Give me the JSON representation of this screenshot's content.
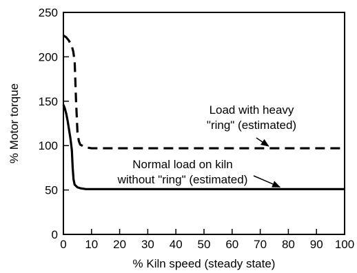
{
  "chart_data": {
    "type": "line",
    "xlabel": "% Kiln speed (steady state)",
    "ylabel": "% Motor torque",
    "xlim": [
      0,
      100
    ],
    "ylim": [
      0,
      250
    ],
    "x_ticks": [
      "0",
      "10",
      "20",
      "30",
      "40",
      "50",
      "60",
      "70",
      "80",
      "90",
      "100"
    ],
    "y_ticks": [
      "0",
      "50",
      "100",
      "150",
      "200",
      "250"
    ],
    "grid": false,
    "legend": "none",
    "series": [
      {
        "style": "dashed",
        "color": "#000000",
        "x": [
          0,
          1,
          2,
          3,
          3.5,
          4,
          4.5,
          5,
          5.5,
          6,
          8,
          10,
          12,
          20,
          40,
          60,
          80,
          100
        ],
        "y": [
          224,
          222,
          218,
          212,
          206,
          195,
          150,
          115,
          105,
          101,
          98,
          97,
          97,
          97,
          97,
          97,
          97,
          97
        ]
      },
      {
        "style": "solid",
        "color": "#000000",
        "x": [
          0,
          0.5,
          1,
          1.5,
          2,
          2.5,
          3,
          3.3,
          3.6,
          4,
          5,
          6,
          8,
          10,
          20,
          40,
          60,
          80,
          100
        ],
        "y": [
          146,
          142,
          136,
          128,
          118,
          108,
          95,
          75,
          62,
          56,
          53,
          52,
          51,
          51,
          51,
          51,
          51,
          51,
          51
        ]
      }
    ],
    "annotations": [
      {
        "lines": [
          "Load with heavy",
          "\"ring\" (estimated)"
        ],
        "arrow_to": [
          73,
          97
        ]
      },
      {
        "lines": [
          "Normal load on kiln",
          "without \"ring\" (estimated)"
        ],
        "arrow_to": [
          77,
          51
        ]
      }
    ]
  }
}
